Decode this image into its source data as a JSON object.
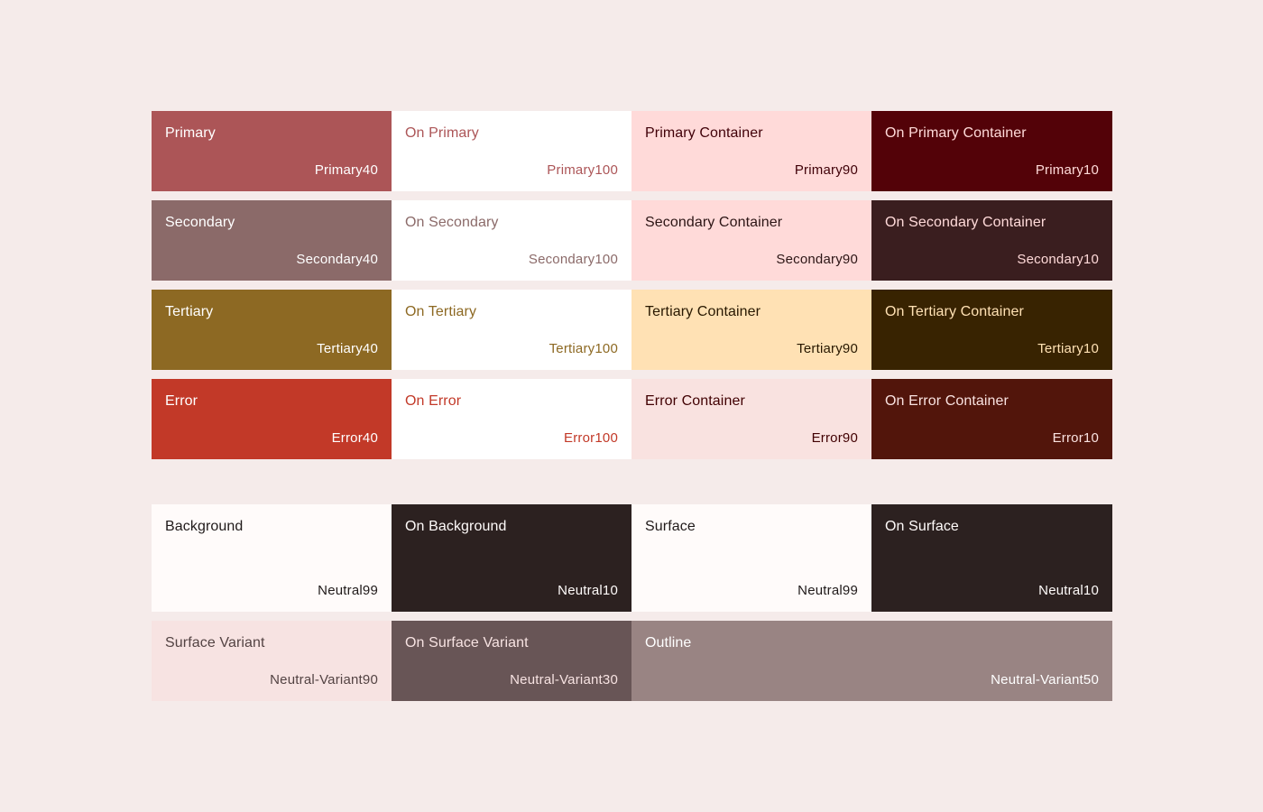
{
  "tonal_rows": [
    [
      {
        "name": "Primary",
        "tone": "Primary40",
        "bg": "#ac5557",
        "fg": "#ffffff"
      },
      {
        "name": "On Primary",
        "tone": "Primary100",
        "bg": "#ffffff",
        "fg": "#ac5557"
      },
      {
        "name": "Primary Container",
        "tone": "Primary90",
        "bg": "#ffdad9",
        "fg": "#400008"
      },
      {
        "name": "On Primary Container",
        "tone": "Primary10",
        "bg": "#530208",
        "fg": "#ffdad9"
      }
    ],
    [
      {
        "name": "Secondary",
        "tone": "Secondary40",
        "bg": "#8b6a69",
        "fg": "#ffffff"
      },
      {
        "name": "On Secondary",
        "tone": "Secondary100",
        "bg": "#ffffff",
        "fg": "#8b6a69"
      },
      {
        "name": "Secondary Container",
        "tone": "Secondary90",
        "bg": "#ffdad9",
        "fg": "#2c1515"
      },
      {
        "name": "On Secondary Container",
        "tone": "Secondary10",
        "bg": "#3a1e1f",
        "fg": "#ffdad9"
      }
    ],
    [
      {
        "name": "Tertiary",
        "tone": "Tertiary40",
        "bg": "#8d6923",
        "fg": "#ffffff"
      },
      {
        "name": "On Tertiary",
        "tone": "Tertiary100",
        "bg": "#ffffff",
        "fg": "#8d6923"
      },
      {
        "name": "Tertiary Container",
        "tone": "Tertiary90",
        "bg": "#ffe1b4",
        "fg": "#281800"
      },
      {
        "name": "On Tertiary Container",
        "tone": "Tertiary10",
        "bg": "#382301",
        "fg": "#ffe1b4"
      }
    ],
    [
      {
        "name": "Error",
        "tone": "Error40",
        "bg": "#c23928",
        "fg": "#ffffff"
      },
      {
        "name": "On Error",
        "tone": "Error100",
        "bg": "#ffffff",
        "fg": "#c23928"
      },
      {
        "name": "Error Container",
        "tone": "Error90",
        "bg": "#f9e2e0",
        "fg": "#410002"
      },
      {
        "name": "On Error Container",
        "tone": "Error10",
        "bg": "#52150b",
        "fg": "#f9e2e0"
      }
    ]
  ],
  "neutral_rows": [
    [
      {
        "name": "Background",
        "tone": "Neutral99",
        "bg": "#fffbfa",
        "fg": "#201a1a",
        "span": 1
      },
      {
        "name": "On Background",
        "tone": "Neutral10",
        "bg": "#2c2120",
        "fg": "#fffbfa",
        "span": 1
      },
      {
        "name": "Surface",
        "tone": "Neutral99",
        "bg": "#fffbfa",
        "fg": "#201a1a",
        "span": 1
      },
      {
        "name": "On Surface",
        "tone": "Neutral10",
        "bg": "#2c2120",
        "fg": "#fffbfa",
        "span": 1
      }
    ],
    [
      {
        "name": "Surface Variant",
        "tone": "Neutral-Variant90",
        "bg": "#f7e3e2",
        "fg": "#534343",
        "span": 1
      },
      {
        "name": "On Surface Variant",
        "tone": "Neutral-Variant30",
        "bg": "#685556",
        "fg": "#f7e3e2",
        "span": 1
      },
      {
        "name": "Outline",
        "tone": "Neutral-Variant50",
        "bg": "#998483",
        "fg": "#ffffff",
        "span": 2
      }
    ]
  ]
}
